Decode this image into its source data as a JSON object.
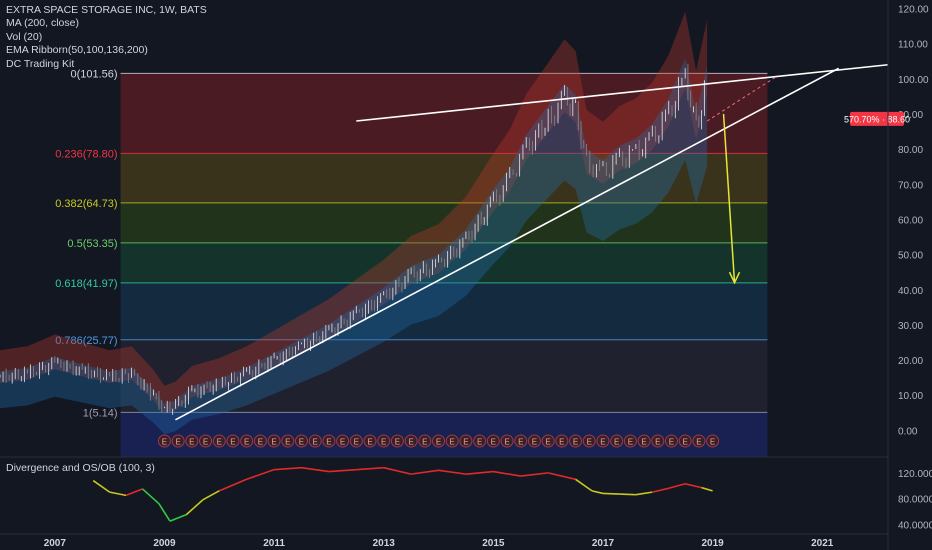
{
  "legend": {
    "symbol": "EXTRA SPACE STORAGE INC, 1W, BATS",
    "ma": "MA (200, close)",
    "vol": "Vol (20)",
    "ema": "EMA Ribborn(50,100,136,200)",
    "kit": "DC Trading Kit"
  },
  "price_badge": "570.70% · 88.60",
  "oscillator_title": "Divergence and OS/OB (100, 3)",
  "earnings_marker": "E",
  "colors": {
    "background": "#131722",
    "trendline": "#ffffff",
    "target_arrow": "#e6e633",
    "up_candle": "#e8e8e8",
    "down_candle": "#888888",
    "badge": "#f23645"
  },
  "chart_data": {
    "type": "line",
    "series": [
      {
        "x": [
          2006.0,
          2006.5,
          2007.0,
          2007.5,
          2008.0,
          2008.4,
          2008.8,
          2009.0,
          2009.2,
          2009.5,
          2010.0,
          2010.5,
          2011.0,
          2011.5,
          2012.0,
          2012.5,
          2013.0,
          2013.5,
          2014.0,
          2014.5,
          2015.0,
          2015.3,
          2015.6,
          2016.0,
          2016.3,
          2016.5,
          2016.7,
          2017.0,
          2017.3,
          2017.6,
          2017.9,
          2018.2,
          2018.5,
          2018.7,
          2018.9
        ],
        "values": [
          15,
          16,
          19,
          17,
          15,
          16,
          10,
          6,
          7,
          11,
          13,
          16,
          20,
          24,
          28,
          33,
          38,
          44,
          47,
          54,
          65,
          71,
          80,
          88,
          94,
          91,
          76,
          73,
          77,
          79,
          83,
          90,
          101,
          86,
          99
        ]
      }
    ],
    "fibonacci": [
      {
        "ratio": "0",
        "label": "0(101.56)",
        "value": 101.56,
        "color": "#d1d4dc"
      },
      {
        "ratio": "0.236",
        "label": "0.236(78.80)",
        "value": 78.8,
        "color": "#f23645"
      },
      {
        "ratio": "0.382",
        "label": "0.382(64.73)",
        "value": 64.73,
        "color": "#c8c820"
      },
      {
        "ratio": "0.5",
        "label": "0.5(53.35)",
        "value": 53.35,
        "color": "#6ccf6c"
      },
      {
        "ratio": "0.618",
        "label": "0.618(41.97)",
        "value": 41.97,
        "color": "#33c9a4"
      },
      {
        "ratio": "0.786",
        "label": "0.786(25.77)",
        "value": 25.77,
        "color": "#4c9be8"
      },
      {
        "ratio": "1",
        "label": "1(5.14)",
        "value": 5.14,
        "color": "#9e9eb0"
      }
    ],
    "xlim": [
      2006.0,
      2022.2
    ],
    "ylim": [
      -7,
      121
    ],
    "yticks": [
      "0.00",
      "10.00",
      "20.00",
      "30.00",
      "40.00",
      "50.00",
      "60.00",
      "70.00",
      "80.00",
      "90.00",
      "100.00",
      "110.00",
      "120.00"
    ],
    "xticks": [
      "2007",
      "2009",
      "2011",
      "2013",
      "2015",
      "2017",
      "2019",
      "2021"
    ],
    "oscillator": {
      "x": [
        2007.7,
        2008.0,
        2008.3,
        2008.6,
        2008.9,
        2009.1,
        2009.4,
        2009.7,
        2010.0,
        2010.5,
        2011.0,
        2011.5,
        2012.0,
        2012.5,
        2013.0,
        2013.5,
        2014.0,
        2014.5,
        2015.0,
        2015.5,
        2016.0,
        2016.5,
        2016.8,
        2017.0,
        2017.3,
        2017.6,
        2017.9,
        2018.2,
        2018.5,
        2018.8,
        2019.0
      ],
      "values": [
        108,
        90,
        85,
        95,
        72,
        45,
        55,
        78,
        92,
        110,
        125,
        128,
        122,
        125,
        128,
        118,
        124,
        118,
        122,
        115,
        120,
        110,
        92,
        88,
        87,
        86,
        90,
        96,
        103,
        97,
        92
      ],
      "yticks": [
        "40.0000",
        "80.0000",
        "120.0000"
      ],
      "ylim": [
        28,
        140
      ]
    },
    "annotations": [
      "570.70% · 88.60"
    ]
  }
}
